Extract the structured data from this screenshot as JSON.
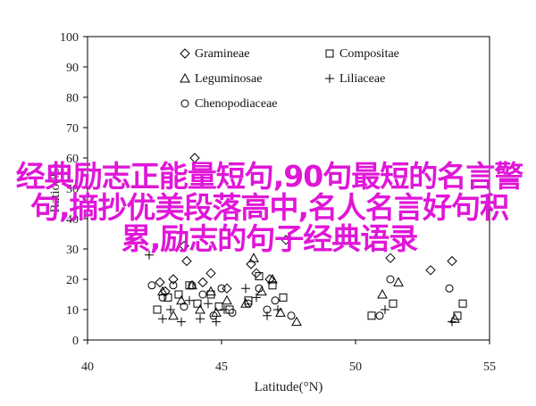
{
  "chart_data": {
    "type": "scatter",
    "xlabel": "Latitude(°N)",
    "ylabel": "Ratio(%)",
    "xlim": [
      40,
      55
    ],
    "ylim": [
      0,
      100
    ],
    "xticks": [
      "40",
      "45",
      "50",
      "55"
    ],
    "yticks": [
      "0",
      "10",
      "20",
      "30",
      "40",
      "50",
      "60",
      "70",
      "80",
      "90",
      "100"
    ],
    "legend_position": "top-left",
    "series": [
      {
        "name": "Gramineae",
        "marker": "diamond",
        "x": [
          42.7,
          42.9,
          43.2,
          43.6,
          43.7,
          44.0,
          44.3,
          44.6,
          45.2,
          46.1,
          46.3,
          46.8,
          47.4,
          51.3,
          52.8,
          53.6
        ],
        "y": [
          19,
          16,
          20,
          31,
          26,
          60,
          19,
          22,
          17,
          25,
          22,
          20,
          33,
          27,
          23,
          26
        ]
      },
      {
        "name": "Compositae",
        "marker": "square",
        "x": [
          42.6,
          43.0,
          43.4,
          43.8,
          44.1,
          44.6,
          44.9,
          45.3,
          46.0,
          46.4,
          46.9,
          47.3,
          50.6,
          51.4,
          53.8,
          54.0
        ],
        "y": [
          10,
          14,
          15,
          18,
          12,
          15,
          11,
          10,
          13,
          21,
          18,
          14,
          8,
          12,
          8,
          12
        ]
      },
      {
        "name": "Leguminosae",
        "marker": "triangle",
        "x": [
          42.8,
          43.2,
          43.5,
          43.9,
          44.2,
          44.6,
          44.8,
          45.2,
          45.9,
          46.2,
          46.5,
          46.9,
          47.2,
          47.8,
          51.0,
          51.6,
          53.7
        ],
        "y": [
          16,
          8,
          13,
          18,
          10,
          16,
          9,
          13,
          12,
          27,
          16,
          20,
          9,
          6,
          15,
          19,
          7
        ]
      },
      {
        "name": "Liliaceae",
        "marker": "plus",
        "x": [
          42.3,
          42.8,
          43.1,
          43.5,
          43.8,
          44.2,
          44.5,
          44.8,
          45.1,
          45.9,
          46.3,
          46.7,
          47.1,
          51.1,
          53.6
        ],
        "y": [
          28,
          7,
          10,
          6,
          13,
          7,
          12,
          6,
          10,
          17,
          14,
          8,
          10,
          10,
          6
        ]
      },
      {
        "name": "Chenopodiaceae",
        "marker": "circle",
        "x": [
          42.4,
          42.8,
          43.2,
          43.6,
          43.9,
          44.3,
          44.7,
          45.0,
          45.4,
          46.0,
          46.4,
          46.7,
          47.0,
          47.6,
          50.9,
          51.3,
          53.5
        ],
        "y": [
          18,
          14,
          18,
          11,
          18,
          15,
          8,
          17,
          9,
          12,
          17,
          10,
          13,
          8,
          8,
          20,
          17
        ]
      }
    ]
  },
  "overlay_text": "经典励志正能量短句,90句最短的名言警句,摘抄优美段落高中,名人名言好句积累,励志的句子经典语录"
}
